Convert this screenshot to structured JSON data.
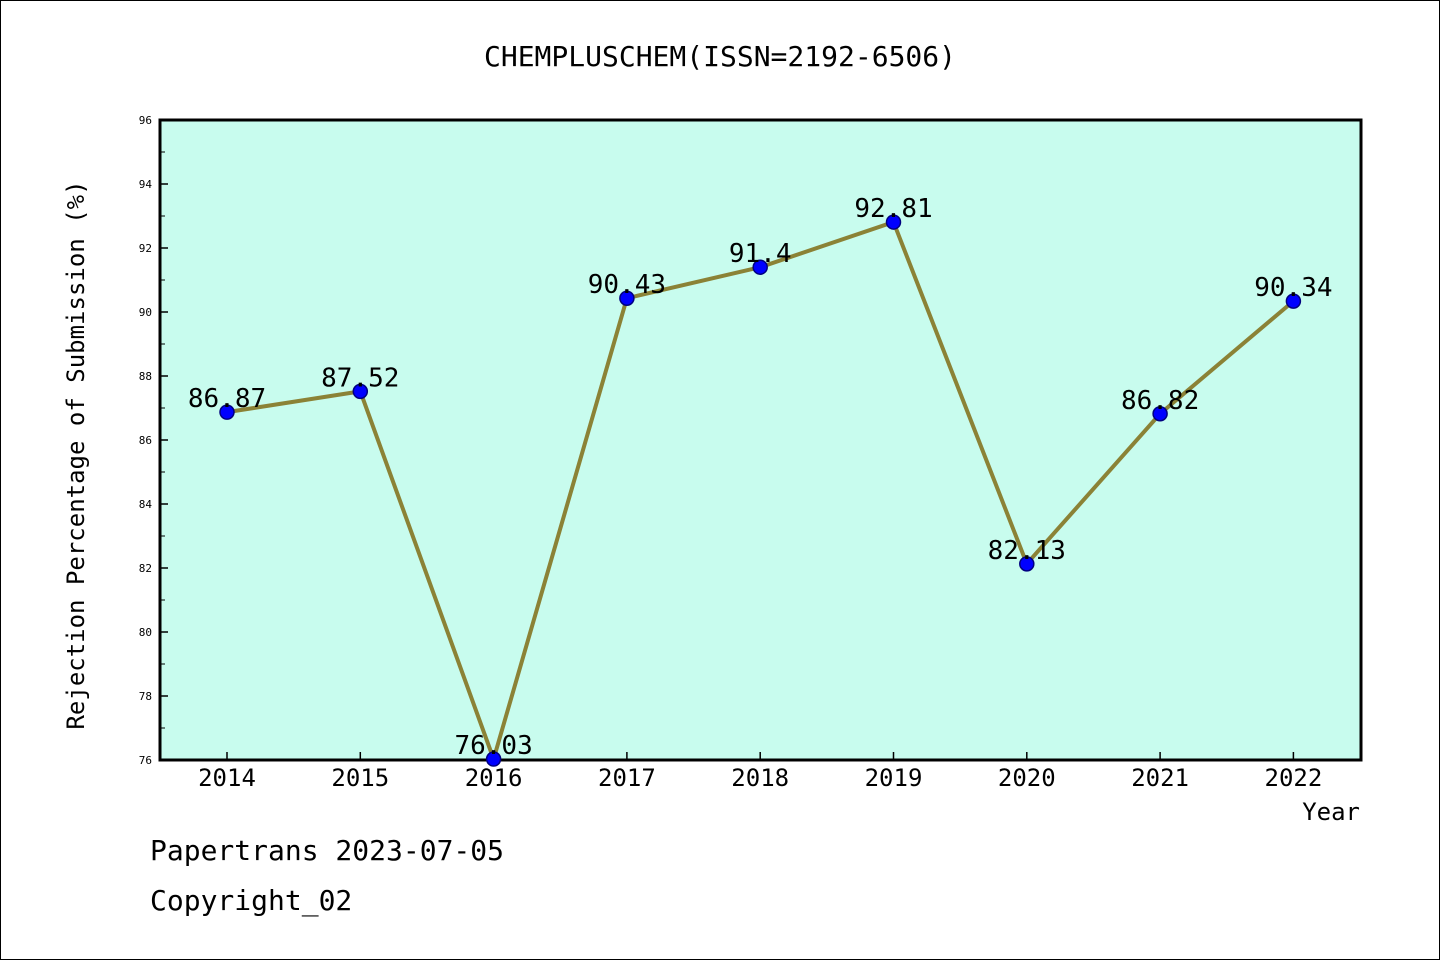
{
  "chart_data": {
    "type": "line",
    "title": "CHEMPLUSCHEM(ISSN=2192-6506)",
    "xlabel": "Year",
    "ylabel": "Rejection Percentage of Submission (%)",
    "categories": [
      "2014",
      "2015",
      "2016",
      "2017",
      "2018",
      "2019",
      "2020",
      "2021",
      "2022"
    ],
    "values": [
      86.87,
      87.52,
      76.03,
      90.43,
      91.4,
      92.81,
      82.13,
      86.82,
      90.34
    ],
    "data_labels": [
      "86.87",
      "87.52",
      "76.03",
      "90.43",
      "91.4",
      "92.81",
      "82.13",
      "86.82",
      "90.34"
    ],
    "ylim": [
      76,
      96
    ],
    "yticks": [
      "76",
      "78",
      "80",
      "82",
      "84",
      "86",
      "88",
      "90",
      "92",
      "94",
      "96"
    ],
    "grid": false,
    "legend": "none",
    "colors": {
      "plot_background": "#c8fcee",
      "line": "#8b8236",
      "marker": "#0000ff",
      "marker_edge": "#000080"
    }
  },
  "footer": {
    "line1": "Papertrans 2023-07-05",
    "line2": "Copyright_02"
  }
}
